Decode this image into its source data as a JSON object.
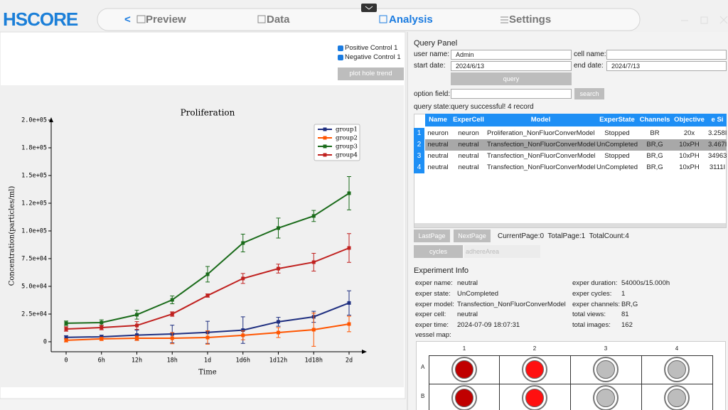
{
  "header": {
    "logo": "HSCORE",
    "back": "<",
    "nav": [
      "Preview",
      "Data",
      "Analysis",
      "Settings"
    ]
  },
  "left_panel": {
    "legend": [
      "Positive Control 1",
      "Negative Control 1"
    ],
    "button": "plot hole trend"
  },
  "chart_data": {
    "type": "line",
    "title": "Proliferation",
    "x_label": "Time",
    "y_label": "Concentration(particles/ml)",
    "categories": [
      "0",
      "6h",
      "12h",
      "18h",
      "1d",
      "1d6h",
      "1d12h",
      "1d18h",
      "2d"
    ],
    "series": [
      {
        "name": "group1",
        "color": "#1f2f80",
        "values": [
          4000,
          4500,
          6000,
          7000,
          8500,
          10500,
          18000,
          22500,
          35000
        ],
        "errors": [
          1500,
          1500,
          4500,
          8000,
          10000,
          12000,
          4000,
          5000,
          11000
        ]
      },
      {
        "name": "group2",
        "color": "#ff5500",
        "values": [
          1300,
          2600,
          3200,
          3200,
          3800,
          5800,
          8300,
          10900,
          16000
        ],
        "errors": [
          1500,
          1500,
          2000,
          5000,
          6000,
          4000,
          4500,
          15000,
          7000
        ]
      },
      {
        "name": "group3",
        "color": "#1a6b1a",
        "values": [
          16700,
          17300,
          24400,
          37800,
          60900,
          89100,
          102600,
          113500,
          134000
        ],
        "errors": [
          2000,
          2500,
          4000,
          3500,
          7000,
          8000,
          9000,
          5000,
          15000
        ]
      },
      {
        "name": "group4",
        "color": "#c0211f",
        "values": [
          11500,
          12800,
          14700,
          25000,
          41700,
          57100,
          66000,
          71800,
          84600
        ],
        "errors": [
          2000,
          2000,
          3500,
          2000,
          1500,
          4500,
          4000,
          8000,
          13000
        ]
      }
    ],
    "ylim": [
      -9000,
      200000
    ],
    "yticks": [
      0,
      {
        "value": 25000,
        "label": "2.5e+04"
      },
      {
        "value": 50000,
        "label": "5.0e+04"
      },
      {
        "value": 75000,
        "label": "7.5e+04"
      },
      {
        "value": 100000,
        "label": "1.0e+05"
      },
      {
        "value": 125000,
        "label": "1.2e+05"
      },
      {
        "value": 150000,
        "label": "1.5e+05"
      },
      {
        "value": 175000,
        "label": "1.8e+05"
      },
      {
        "value": 200000,
        "label": "2.0e+05"
      }
    ],
    "grid": false,
    "legend": "upper right"
  },
  "query_panel": {
    "title": "Query Panel",
    "fields": [
      {
        "label": "user name:",
        "value": "Admin"
      },
      {
        "label": "cell name:"
      },
      {
        "label": "start date:",
        "value": "2024/6/13"
      },
      {
        "label": "end date:",
        "value": "2024/7/13"
      }
    ],
    "query_button": "query",
    "option_label": "option field:",
    "search_button": "search",
    "state_label": "query state:",
    "state": "query successful! 4 record"
  },
  "table": {
    "columns": [
      "Name",
      "ExperCell",
      "Model",
      "ExperState",
      "Channels",
      "Objective",
      "e Si"
    ],
    "rows": [
      {
        "index": "1",
        "cells": [
          "neuron",
          "neuron",
          "Proliferation_NonFluorConverModel",
          "Stopped",
          "BR",
          "20x",
          "3.258I"
        ]
      },
      {
        "index": "2",
        "cells": [
          "neutral",
          "neutral",
          "Transfection_NonFluorConverModel",
          "UnCompleted",
          "BR,G",
          "10xPH",
          "3.467I"
        ]
      },
      {
        "index": "3",
        "cells": [
          "neutral",
          "neutral",
          "Transfection_NonFluorConverModel",
          "Stopped",
          "BR,G",
          "10xPH",
          "34963"
        ]
      },
      {
        "index": "4",
        "cells": [
          "neutral",
          "neutral",
          "Transfection_NonFluorConverModel",
          "UnCompleted",
          "BR,G",
          "10xPH",
          "3111I"
        ]
      }
    ]
  },
  "pagination": {
    "buttons": [
      "LastPage",
      "NextPage"
    ],
    "status": "CurrentPage:0  TotalPage:1  TotalCount:4",
    "cycles": "cycles",
    "dropdown": "adhereArea"
  },
  "experiment_info": {
    "title": "Experiment Info",
    "left": [
      {
        "label": "exper name:",
        "value": "neutral"
      },
      {
        "label": "exper state:",
        "value": "UnCompleted"
      },
      {
        "label": "exper model:",
        "value": "Transfection_NonFluorConverModel"
      },
      {
        "label": "exper cell:",
        "value": "neutral"
      },
      {
        "label": "exper time:",
        "value": "2024-07-09 18:07:31"
      }
    ],
    "right": [
      {
        "label": "exper duration:",
        "value": "54000s/15.000h"
      },
      {
        "label": "exper cycles:",
        "value": "1"
      },
      {
        "label": "exper channels:",
        "value": "BR,G"
      },
      {
        "label": "total views:",
        "value": "81"
      },
      {
        "label": "total images:",
        "value": "162"
      }
    ],
    "vessel_map": {
      "label": "vessel map:",
      "columns": [
        "1",
        "2",
        "3",
        "4"
      ],
      "rows": [
        "A",
        "B"
      ]
    }
  }
}
